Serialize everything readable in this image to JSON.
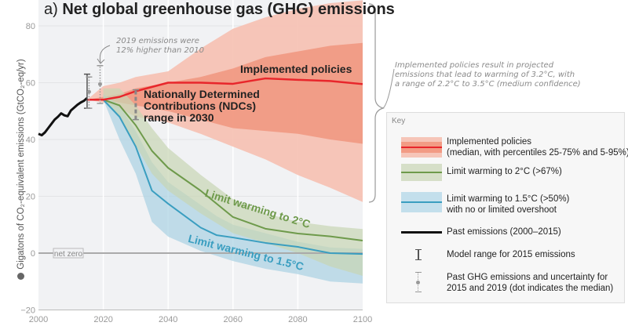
{
  "chart_data": {
    "type": "area",
    "title": "a) Net global greenhouse gas (GHG) emissions",
    "title_prefix": "a)",
    "title_main": "Net global greenhouse gas (GHG) emissions",
    "ylabel": "Gigatons of CO₂-equivalent emissions (GtCO₂-eq/yr)",
    "xlim": [
      2000,
      2100
    ],
    "ylim": [
      -20,
      90
    ],
    "x_ticks": [
      "2000",
      "2020",
      "2040",
      "2060",
      "2080",
      "2100"
    ],
    "y_ticks": [
      "80",
      "60",
      "40",
      "20",
      "0",
      "−20"
    ],
    "grid": true,
    "net_zero_label": "net zero",
    "series": [
      {
        "name": "Implemented policies",
        "color": "#e8262b",
        "x": [
          2015,
          2020,
          2025,
          2030,
          2040,
          2050,
          2060,
          2070,
          2080,
          2090,
          2100
        ],
        "median": [
          54,
          54,
          55,
          57,
          60,
          60,
          59.6,
          61.5,
          61,
          60.6,
          59.5
        ],
        "p25": [
          54,
          54,
          53,
          52,
          50,
          47,
          44,
          43,
          42,
          40,
          38.5
        ],
        "p75": [
          54,
          55,
          56,
          58,
          60,
          62,
          65,
          69,
          71,
          73,
          74
        ],
        "p5": [
          54,
          53,
          51,
          48,
          46,
          42,
          37.5,
          33,
          27.5,
          23,
          18
        ],
        "p95": [
          54,
          58.8,
          60,
          62,
          64,
          72,
          79,
          83,
          86,
          88,
          89
        ]
      },
      {
        "name": "Limit warming to 2°C",
        "color": "#6e9a4b",
        "x": [
          2020,
          2025,
          2030,
          2035,
          2040,
          2050,
          2060,
          2070,
          2080,
          2090,
          2100
        ],
        "median": [
          54,
          52,
          45,
          36,
          30,
          22,
          12.7,
          8.6,
          6.9,
          5.9,
          4.4
        ],
        "low": [
          54,
          48,
          38,
          28,
          22,
          14,
          7,
          3.6,
          0,
          -4.7,
          -8
        ],
        "high": [
          58,
          58,
          52,
          44,
          37,
          27.6,
          19,
          14,
          11,
          9.5,
          8.5
        ]
      },
      {
        "name": "Limit warming to 1.5°C",
        "color": "#3a9ec0",
        "x": [
          2020,
          2025,
          2030,
          2035,
          2040,
          2050,
          2055,
          2060,
          2070,
          2080,
          2090,
          2100
        ],
        "median": [
          54,
          48,
          37.5,
          22,
          17.4,
          9,
          6.3,
          5.5,
          3.6,
          2.2,
          0,
          -0.3
        ],
        "low": [
          54,
          40,
          28,
          11,
          5.8,
          0.8,
          -1,
          -2.8,
          -5.5,
          -7.4,
          -10,
          -10.7
        ],
        "high": [
          56,
          52,
          43,
          32,
          25,
          17,
          13,
          10,
          7,
          4,
          2,
          1.5
        ]
      },
      {
        "name": "Past emissions (2000–2015)",
        "color": "#111111",
        "x": [
          2000,
          2001,
          2002,
          2003,
          2004,
          2005,
          2006,
          2007,
          2008,
          2009,
          2010,
          2011,
          2012,
          2013,
          2014,
          2015
        ],
        "y": [
          42,
          41.5,
          42.5,
          44,
          45.5,
          47,
          48,
          49.2,
          48.5,
          48.2,
          50.2,
          51.2,
          52.2,
          53,
          53.6,
          54.6
        ]
      }
    ],
    "error_bars": [
      {
        "label": "Model range for 2015 emissions",
        "x": 2015,
        "low": 51,
        "high": 63
      },
      {
        "label": "Past GHG emissions 2015",
        "x": 2015.6,
        "low": 51,
        "median": 56.8,
        "high": 62
      },
      {
        "label": "Past GHG emissions 2019",
        "x": 2019,
        "low": 52.7,
        "median": 59.5,
        "high": 66
      },
      {
        "label": "NDCs range in 2030",
        "x": 2030,
        "low": 47,
        "high": 57.5
      }
    ],
    "annotations": {
      "implemented": "Implemented policies",
      "ndc": [
        "Nationally Determined",
        "Contributions (NDCs)",
        "range in 2030"
      ],
      "emissions_2019": [
        "2019 emissions were",
        "12% higher than 2010"
      ],
      "limit2": "Limit warming to 2°C",
      "limit15": "Limit warming to 1.5°C",
      "brace_note": [
        "Implemented policies result in projected",
        "emissions that lead to warming of 3.2°C, with",
        "a range of 2.2°C to 3.5°C (medium confidence)"
      ]
    },
    "legend": {
      "placement": "right",
      "title": "Key",
      "items": [
        {
          "text": [
            "Implemented policies",
            "(median, with percentiles 25-75% and 5-95%)"
          ]
        },
        {
          "text": [
            "Limit warming to 2°C (>67%)"
          ]
        },
        {
          "text": [
            "Limit warming to 1.5°C (>50%)",
            "with no or limited overshoot"
          ]
        },
        {
          "text": [
            "Past emissions (2000–2015)"
          ]
        },
        {
          "text": [
            "Model range for 2015 emissions"
          ]
        },
        {
          "text": [
            "Past GHG emissions and uncertainty for",
            "2015 and 2019 (dot indicates the median)"
          ]
        }
      ]
    }
  }
}
